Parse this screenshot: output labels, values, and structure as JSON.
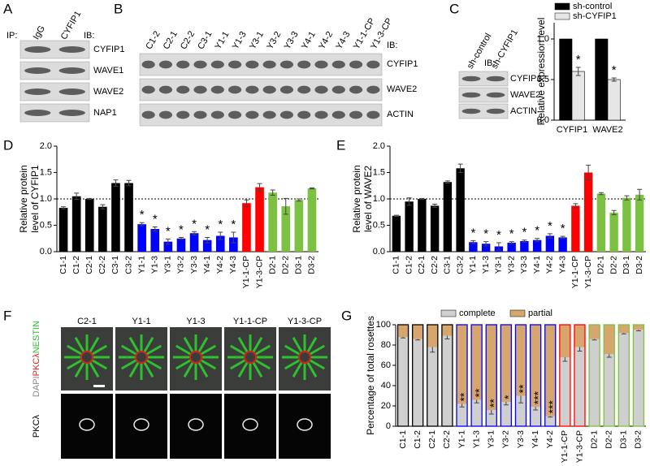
{
  "panel_labels": [
    "A",
    "B",
    "C",
    "D",
    "E",
    "F",
    "G"
  ],
  "blot_a": {
    "ip_label": "IP:",
    "lanes": [
      "IgG",
      "CYFIP1"
    ],
    "ib_label": "IB:",
    "rows": [
      "CYFIP1",
      "WAVE1",
      "WAVE2",
      "NAP1"
    ]
  },
  "blot_b": {
    "lanes": [
      "C1-2",
      "C2-1",
      "C2-2",
      "C3-1",
      "Y1-1",
      "Y1-3",
      "Y3-1",
      "Y3-2",
      "Y3-3",
      "Y4-1",
      "Y4-2",
      "Y4-3",
      "Y1-1-CP",
      "Y1-3-CP"
    ],
    "ib_label": "IB:",
    "rows": [
      "CYFIP1",
      "WAVE2",
      "ACTIN"
    ]
  },
  "blot_c": {
    "lanes": [
      "sh-control",
      "sh-CYFIP1"
    ],
    "ib_label": "IB:",
    "rows": [
      "CYFIP1",
      "WAVE2",
      "ACTIN"
    ]
  },
  "images_f": {
    "columns": [
      "C2-1",
      "Y1-1",
      "Y1-3",
      "Y1-1-CP",
      "Y1-3-CP"
    ],
    "top_row_label": [
      {
        "text": "DAPI",
        "color": "#8a8a8a"
      },
      {
        "text": "PKCλ",
        "color": "#e0201b"
      },
      {
        "text": "NESTIN",
        "color": "#2fbf2f"
      }
    ],
    "bottom_row_label": "PKCλ"
  },
  "chart_data": [
    {
      "type": "grouped_bar",
      "ylabel": [
        "Relative expression level"
      ],
      "categories": [
        "CYFIP1",
        "WAVE2"
      ],
      "series": [
        {
          "name": "sh-control",
          "color": "#000000",
          "values": [
            1.0,
            1.0
          ],
          "errors": [
            0,
            0
          ],
          "annotations": [
            null,
            null
          ]
        },
        {
          "name": "sh-CYFIP1",
          "color": "#e6e6e6",
          "values": [
            0.6,
            0.5
          ],
          "errors": [
            0.05,
            0.02
          ],
          "annotations": [
            "*",
            "*"
          ]
        }
      ],
      "ylim": [
        0,
        1.2
      ],
      "yticks": [
        {
          "value": 0,
          "label": "0.0"
        },
        {
          "value": 0.5,
          "label": "0.5"
        },
        {
          "value": 1,
          "label": "1.0"
        }
      ],
      "legend": "top"
    },
    {
      "type": "bar",
      "ylabel": [
        "Relative protein",
        "level of CYFIP1"
      ],
      "categories": [
        "C1-1",
        "C1-2",
        "C2-1",
        "C2-2",
        "C3-1",
        "C3-2",
        "Y1-1",
        "Y1-3",
        "Y3-1",
        "Y3-2",
        "Y3-3",
        "Y4-1",
        "Y4-2",
        "Y4-3",
        "Y1-1-CP",
        "Y1-3-CP",
        "D2-1",
        "D2-2",
        "D3-1",
        "D3-2"
      ],
      "values": [
        0.83,
        1.05,
        1.0,
        0.85,
        1.3,
        1.3,
        0.52,
        0.43,
        0.19,
        0.25,
        0.35,
        0.22,
        0.3,
        0.27,
        0.92,
        1.22,
        1.12,
        0.86,
        0.98,
        1.2
      ],
      "errors": [
        0.02,
        0.06,
        0.01,
        0.04,
        0.06,
        0.05,
        0.03,
        0.04,
        0.05,
        0.02,
        0.03,
        0.05,
        0.07,
        0.1,
        0.06,
        0.07,
        0.05,
        0.15,
        0.02,
        0.01
      ],
      "colors": [
        "#000000",
        "#000000",
        "#000000",
        "#000000",
        "#000000",
        "#000000",
        "#0000ff",
        "#0000ff",
        "#0000ff",
        "#0000ff",
        "#0000ff",
        "#0000ff",
        "#0000ff",
        "#0000ff",
        "#ff0000",
        "#ff0000",
        "#7cc142",
        "#7cc142",
        "#7cc142",
        "#7cc142"
      ],
      "annotations": [
        null,
        null,
        null,
        null,
        null,
        null,
        "*",
        "*",
        "*",
        "*",
        "*",
        "*",
        "*",
        "*",
        null,
        null,
        null,
        null,
        null,
        null
      ],
      "reference_line": 1,
      "ylim": [
        0,
        2
      ],
      "yticks": [
        {
          "value": 0,
          "label": "0.0"
        },
        {
          "value": 0.5,
          "label": "0.5"
        },
        {
          "value": 1,
          "label": "1.0"
        },
        {
          "value": 1.5,
          "label": "1.5"
        },
        {
          "value": 2,
          "label": "2.0"
        }
      ]
    },
    {
      "type": "bar",
      "ylabel": [
        "Relative protein",
        "level of WAVE2"
      ],
      "categories": [
        "C1-1",
        "C1-2",
        "C2-1",
        "C2-2",
        "C3-1",
        "C3-2",
        "Y1-1",
        "Y1-3",
        "Y3-1",
        "Y3-2",
        "Y3-3",
        "Y4-1",
        "Y4-2",
        "Y4-3",
        "Y1-1-CP",
        "Y1-3-CP",
        "D2-1",
        "D2-2",
        "D3-1",
        "D3-2"
      ],
      "values": [
        0.68,
        0.95,
        1.0,
        0.87,
        1.32,
        1.58,
        0.18,
        0.15,
        0.1,
        0.17,
        0.2,
        0.22,
        0.3,
        0.27,
        0.87,
        1.5,
        1.1,
        0.74,
        1.02,
        1.08
      ],
      "errors": [
        0.01,
        0.07,
        0.01,
        0.03,
        0.02,
        0.08,
        0.03,
        0.04,
        0.07,
        0.02,
        0.02,
        0.03,
        0.04,
        0.02,
        0.04,
        0.14,
        0.02,
        0.04,
        0.04,
        0.1
      ],
      "colors": [
        "#000000",
        "#000000",
        "#000000",
        "#000000",
        "#000000",
        "#000000",
        "#0000ff",
        "#0000ff",
        "#0000ff",
        "#0000ff",
        "#0000ff",
        "#0000ff",
        "#0000ff",
        "#0000ff",
        "#ff0000",
        "#ff0000",
        "#7cc142",
        "#7cc142",
        "#7cc142",
        "#7cc142"
      ],
      "annotations": [
        null,
        null,
        null,
        null,
        null,
        null,
        "*",
        "*",
        "*",
        "*",
        "*",
        "*",
        "*",
        "*",
        null,
        null,
        null,
        null,
        null,
        null
      ],
      "reference_line": 1,
      "ylim": [
        0,
        2
      ],
      "yticks": [
        {
          "value": 0,
          "label": "0.0"
        },
        {
          "value": 0.5,
          "label": "0.5"
        },
        {
          "value": 1,
          "label": "1.0"
        },
        {
          "value": 1.5,
          "label": "1.5"
        },
        {
          "value": 2,
          "label": "2.0"
        }
      ]
    },
    {
      "type": "stacked_bar",
      "ylabel": [
        "Percentage of total rosettes"
      ],
      "categories": [
        "C1-1",
        "C1-2",
        "C2-1",
        "C2-2",
        "Y1-1",
        "Y1-3",
        "Y3-1",
        "Y3-2",
        "Y3-3",
        "Y4-1",
        "Y4-2",
        "Y1-1-CP",
        "Y1-3-CP",
        "D2-1",
        "D2-2",
        "D3-1",
        "D3-2"
      ],
      "series": [
        {
          "name": "complete",
          "color": "#cfcfcf",
          "values": [
            88,
            86,
            78,
            89,
            22,
            26,
            16,
            24,
            30,
            19,
            10,
            68,
            78,
            86,
            71,
            92,
            95
          ],
          "errors": [
            1,
            1,
            5,
            3,
            3,
            3,
            4,
            3,
            7,
            3,
            1,
            4,
            4,
            1,
            3,
            1,
            1
          ]
        },
        {
          "name": "partial",
          "color": "#d6a66e",
          "values": [
            12,
            14,
            22,
            11,
            78,
            74,
            84,
            76,
            70,
            81,
            90,
            32,
            22,
            14,
            29,
            8,
            5
          ]
        }
      ],
      "edge_colors": [
        "#000000",
        "#000000",
        "#000000",
        "#000000",
        "#0000ff",
        "#0000ff",
        "#0000ff",
        "#0000ff",
        "#0000ff",
        "#0000ff",
        "#0000ff",
        "#ff0000",
        "#ff0000",
        "#7cc142",
        "#7cc142",
        "#7cc142",
        "#7cc142"
      ],
      "annotations": [
        null,
        null,
        null,
        null,
        "**",
        "**",
        "**",
        "*",
        "**",
        "***",
        "***",
        null,
        null,
        null,
        null,
        null,
        null
      ],
      "ylim": [
        0,
        100
      ],
      "yticks": [
        0,
        20,
        40,
        60,
        80,
        100
      ],
      "legend": "top"
    }
  ]
}
